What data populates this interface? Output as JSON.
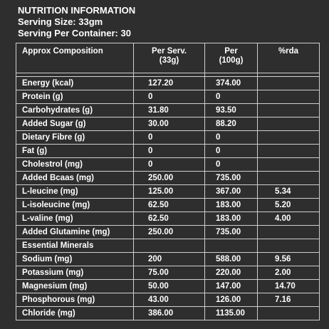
{
  "header": {
    "title": "NUTRITION INFORMATION",
    "serving_size": "Serving Size: 33gm",
    "serving_per_container": "Serving Per Container: 30"
  },
  "table": {
    "columns": [
      "Approx Composition",
      "Per Serv. (33g)",
      "Per (100g)",
      "%rda"
    ],
    "col2_line1": "Per Serv.",
    "col2_line2": "(33g)",
    "col3_line1": "Per",
    "col3_line2": "(100g)",
    "rows": [
      {
        "name": "Energy (kcal)",
        "per_serv": "127.20",
        "per_100g": "374.00",
        "rda": ""
      },
      {
        "name": "Protein (g)",
        "per_serv": "0",
        "per_100g": "0",
        "rda": ""
      },
      {
        "name": "Carbohydrates (g)",
        "per_serv": "31.80",
        "per_100g": "93.50",
        "rda": ""
      },
      {
        "name": "Added Sugar (g)",
        "per_serv": "30.00",
        "per_100g": "88.20",
        "rda": ""
      },
      {
        "name": "Dietary Fibre (g)",
        "per_serv": "0",
        "per_100g": "0",
        "rda": ""
      },
      {
        "name": "Fat (g)",
        "per_serv": "0",
        "per_100g": "0",
        "rda": ""
      },
      {
        "name": "Cholestrol (mg)",
        "per_serv": "0",
        "per_100g": "0",
        "rda": ""
      },
      {
        "name": "Added Bcaas (mg)",
        "per_serv": "250.00",
        "per_100g": "735.00",
        "rda": ""
      },
      {
        "name": "L-leucine (mg)",
        "per_serv": "125.00",
        "per_100g": "367.00",
        "rda": "5.34"
      },
      {
        "name": "L-isoleucine (mg)",
        "per_serv": "62.50",
        "per_100g": "183.00",
        "rda": "5.20"
      },
      {
        "name": "L-valine (mg)",
        "per_serv": "62.50",
        "per_100g": "183.00",
        "rda": "4.00"
      },
      {
        "name": "Added Glutamine (mg)",
        "per_serv": "250.00",
        "per_100g": "735.00",
        "rda": ""
      },
      {
        "name": "Essential Minerals",
        "per_serv": "",
        "per_100g": "",
        "rda": ""
      },
      {
        "name": "Sodium (mg)",
        "per_serv": "200",
        "per_100g": "588.00",
        "rda": "9.56"
      },
      {
        "name": "Potassium (mg)",
        "per_serv": "75.00",
        "per_100g": "220.00",
        "rda": "2.00"
      },
      {
        "name": "Magnesium (mg)",
        "per_serv": "50.00",
        "per_100g": "147.00",
        "rda": "14.70"
      },
      {
        "name": "Phosphorous (mg)",
        "per_serv": "43.00",
        "per_100g": "126.00",
        "rda": "7.16"
      },
      {
        "name": "Chloride (mg)",
        "per_serv": "386.00",
        "per_100g": "1135.00",
        "rda": ""
      }
    ]
  },
  "colors": {
    "background": "#2e2e2e",
    "text": "#ffffff",
    "border": "#cfcfcf"
  }
}
